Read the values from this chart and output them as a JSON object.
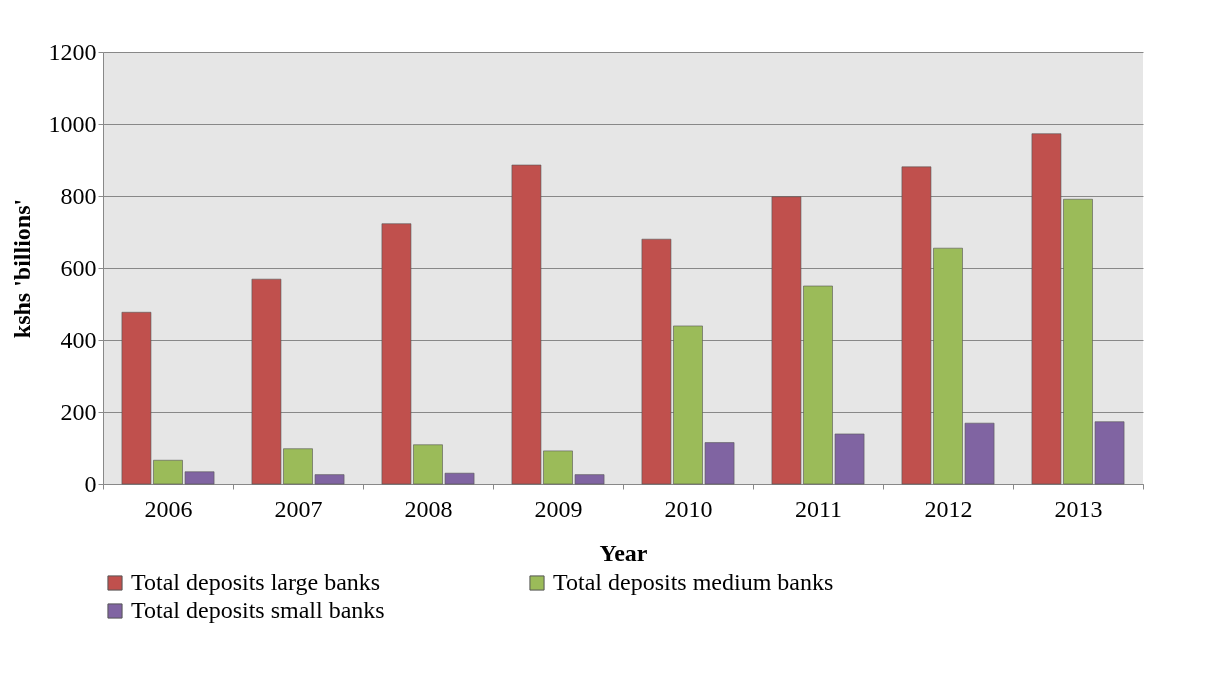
{
  "chart_data": {
    "type": "bar",
    "xlabel": "Year",
    "ylabel": "kshs 'billions'",
    "categories": [
      "2006",
      "2007",
      "2008",
      "2009",
      "2010",
      "2011",
      "2012",
      "2013"
    ],
    "series": [
      {
        "name": "Total deposits large banks",
        "color": "#c0504d",
        "values": [
          477,
          569,
          723,
          886,
          680,
          798,
          881,
          973
        ]
      },
      {
        "name": "Total deposits medium banks",
        "color": "#9bbb59",
        "values": [
          66,
          98,
          109,
          92,
          439,
          550,
          655,
          791
        ]
      },
      {
        "name": "Total deposits small banks",
        "color": "#8064a2",
        "values": [
          34,
          26,
          30,
          26,
          115,
          139,
          169,
          173
        ]
      }
    ],
    "ylim": [
      0,
      1200
    ],
    "yticks": [
      0,
      200,
      400,
      600,
      800,
      1000,
      1200
    ],
    "grid": "y",
    "legend": "bottom"
  }
}
